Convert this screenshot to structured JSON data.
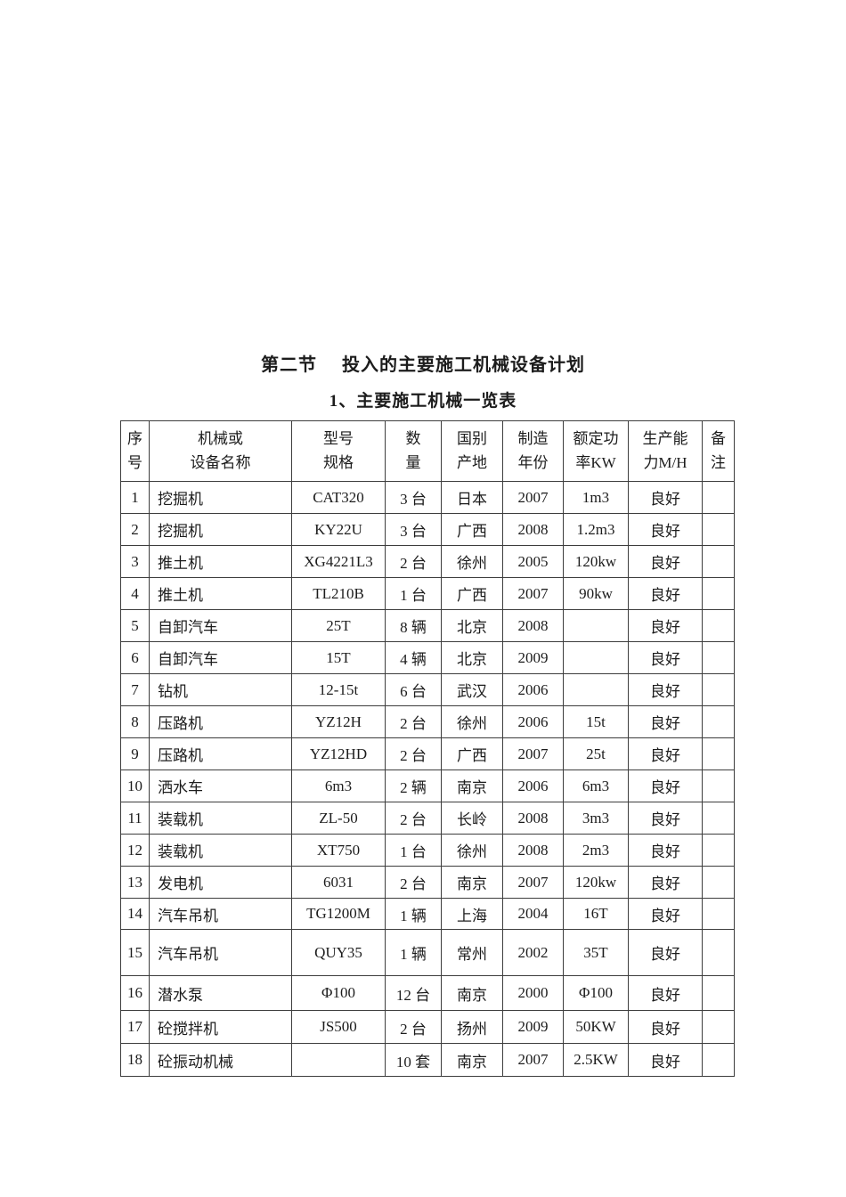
{
  "section": {
    "label": "第二节",
    "title": "投入的主要施工机械设备计划"
  },
  "subtitle": "1、主要施工机械一览表",
  "table": {
    "columns": [
      {
        "id": "index",
        "header": "序\n号"
      },
      {
        "id": "name",
        "header": "机械或\n设备名称"
      },
      {
        "id": "model",
        "header": "型号\n规格"
      },
      {
        "id": "quantity",
        "header": "数\n量"
      },
      {
        "id": "origin",
        "header": "国别\n产地"
      },
      {
        "id": "year",
        "header": "制造\n年份"
      },
      {
        "id": "power",
        "header": "额定功\n率KW"
      },
      {
        "id": "capacity",
        "header": "生产能\n力M/H"
      },
      {
        "id": "remarks",
        "header": "备\n注"
      }
    ],
    "rows": [
      [
        "1",
        "挖掘机",
        "CAT320",
        "3 台",
        "日本",
        "2007",
        "1m3",
        "良好",
        ""
      ],
      [
        "2",
        "挖掘机",
        "KY22U",
        "3 台",
        "广西",
        "2008",
        "1.2m3",
        "良好",
        ""
      ],
      [
        "3",
        "推土机",
        "XG4221L3",
        "2 台",
        "徐州",
        "2005",
        "120kw",
        "良好",
        ""
      ],
      [
        "4",
        "推土机",
        "TL210B",
        "1 台",
        "广西",
        "2007",
        "90kw",
        "良好",
        ""
      ],
      [
        "5",
        "自卸汽车",
        "25T",
        "8 辆",
        "北京",
        "2008",
        "",
        "良好",
        ""
      ],
      [
        "6",
        "自卸汽车",
        "15T",
        "4 辆",
        "北京",
        "2009",
        "",
        "良好",
        ""
      ],
      [
        "7",
        "钻机",
        "12-15t",
        "6 台",
        "武汉",
        "2006",
        "",
        "良好",
        ""
      ],
      [
        "8",
        "压路机",
        "YZ12H",
        "2 台",
        "徐州",
        "2006",
        "15t",
        "良好",
        ""
      ],
      [
        "9",
        "压路机",
        "YZ12HD",
        "2 台",
        "广西",
        "2007",
        "25t",
        "良好",
        ""
      ],
      [
        "10",
        "洒水车",
        "6m3",
        "2 辆",
        "南京",
        "2006",
        "6m3",
        "良好",
        ""
      ],
      [
        "11",
        "装载机",
        "ZL-50",
        "2 台",
        "长岭",
        "2008",
        "3m3",
        "良好",
        ""
      ],
      [
        "12",
        "装载机",
        "XT750",
        "1 台",
        "徐州",
        "2008",
        "2m3",
        "良好",
        ""
      ],
      [
        "13",
        "发电机",
        "6031",
        "2 台",
        "南京",
        "2007",
        "120kw",
        "良好",
        ""
      ],
      [
        "14",
        "汽车吊机",
        "TG1200M",
        "1 辆",
        "上海",
        "2004",
        "16T",
        "良好",
        ""
      ],
      [
        "15",
        "汽车吊机",
        "QUY35",
        "1 辆",
        "常州",
        "2002",
        "35T",
        "良好",
        ""
      ],
      [
        "16",
        "潜水泵",
        "Φ100",
        "12 台",
        "南京",
        "2000",
        "Φ100",
        "良好",
        ""
      ],
      [
        "17",
        "砼搅拌机",
        "JS500",
        "2 台",
        "扬州",
        "2009",
        "50KW",
        "良好",
        ""
      ],
      [
        "18",
        "砼振动机械",
        "",
        "10 套",
        "南京",
        "2007",
        "2.5KW",
        "良好",
        ""
      ]
    ]
  }
}
